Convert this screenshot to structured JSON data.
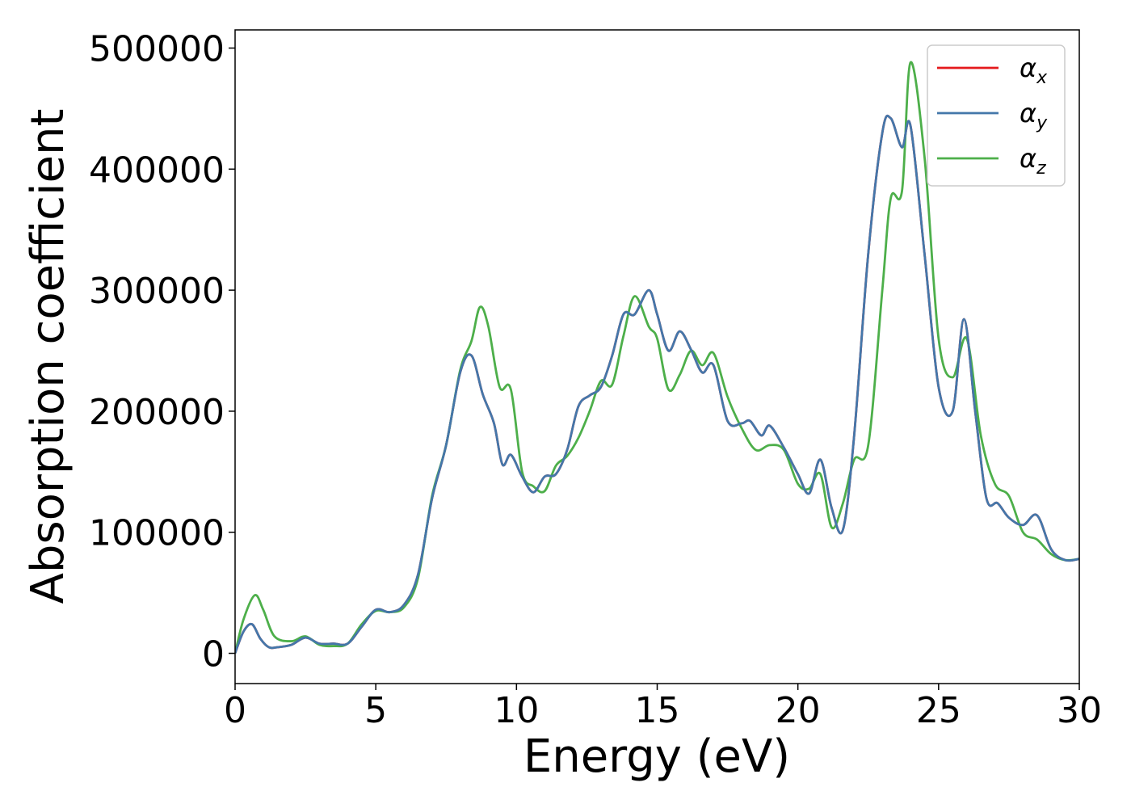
{
  "chart_data": {
    "type": "line",
    "title": "",
    "xlabel": "Energy (eV)",
    "ylabel": "Absorption coefficient",
    "xlim": [
      0,
      30
    ],
    "ylim": [
      -25000,
      515000
    ],
    "xticks": [
      0,
      5,
      10,
      15,
      20,
      25,
      30
    ],
    "yticks": [
      0,
      100000,
      200000,
      300000,
      400000,
      500000
    ],
    "xtick_labels": [
      "0",
      "5",
      "10",
      "15",
      "20",
      "25",
      "30"
    ],
    "ytick_labels": [
      "0",
      "100000",
      "200000",
      "300000",
      "400000",
      "500000"
    ],
    "grid": false,
    "legend_position": "top-right",
    "series": [
      {
        "name": "α",
        "sub": "x",
        "color": "#e41a1c",
        "x": [
          0,
          0.3,
          0.6,
          0.9,
          1.2,
          1.5,
          2.0,
          2.5,
          3.0,
          3.5,
          4.0,
          4.5,
          5.0,
          5.5,
          6.0,
          6.5,
          7.0,
          7.5,
          8.0,
          8.4,
          8.8,
          9.2,
          9.5,
          9.8,
          10.2,
          10.6,
          11.0,
          11.4,
          11.8,
          12.2,
          12.6,
          13.0,
          13.4,
          13.8,
          14.2,
          14.7,
          15.0,
          15.4,
          15.8,
          16.2,
          16.6,
          17.0,
          17.5,
          18.0,
          18.3,
          18.7,
          19.0,
          19.5,
          20.0,
          20.4,
          20.8,
          21.2,
          21.6,
          22.0,
          22.5,
          23.0,
          23.3,
          23.7,
          24.0,
          24.5,
          25.0,
          25.5,
          25.9,
          26.3,
          26.7,
          27.1,
          27.5,
          28.0,
          28.5,
          29.0,
          29.5,
          30.0
        ],
        "values": [
          0,
          18000,
          24000,
          12000,
          5000,
          5000,
          7000,
          13000,
          8000,
          8000,
          8000,
          22000,
          36000,
          34000,
          40000,
          65000,
          128000,
          172000,
          232000,
          246000,
          214000,
          190000,
          156000,
          164000,
          146000,
          133000,
          146000,
          148000,
          168000,
          204000,
          213000,
          220000,
          246000,
          280000,
          280000,
          300000,
          280000,
          250000,
          266000,
          251000,
          232000,
          238000,
          192000,
          190000,
          192000,
          180000,
          188000,
          170000,
          148000,
          132000,
          160000,
          120000,
          102000,
          180000,
          330000,
          430000,
          442000,
          418000,
          436000,
          330000,
          220000,
          200000,
          276000,
          200000,
          128000,
          124000,
          112000,
          106000,
          114000,
          86000,
          77000,
          78000
        ]
      },
      {
        "name": "α",
        "sub": "y",
        "color": "#4477aa",
        "x": [
          0,
          0.3,
          0.6,
          0.9,
          1.2,
          1.5,
          2.0,
          2.5,
          3.0,
          3.5,
          4.0,
          4.5,
          5.0,
          5.5,
          6.0,
          6.5,
          7.0,
          7.5,
          8.0,
          8.4,
          8.8,
          9.2,
          9.5,
          9.8,
          10.2,
          10.6,
          11.0,
          11.4,
          11.8,
          12.2,
          12.6,
          13.0,
          13.4,
          13.8,
          14.2,
          14.7,
          15.0,
          15.4,
          15.8,
          16.2,
          16.6,
          17.0,
          17.5,
          18.0,
          18.3,
          18.7,
          19.0,
          19.5,
          20.0,
          20.4,
          20.8,
          21.2,
          21.6,
          22.0,
          22.5,
          23.0,
          23.3,
          23.7,
          24.0,
          24.5,
          25.0,
          25.5,
          25.9,
          26.3,
          26.7,
          27.1,
          27.5,
          28.0,
          28.5,
          29.0,
          29.5,
          30.0
        ],
        "values": [
          0,
          18000,
          24000,
          12000,
          5000,
          5000,
          7000,
          13000,
          8000,
          8000,
          8000,
          22000,
          36000,
          34000,
          40000,
          65000,
          128000,
          172000,
          232000,
          246000,
          214000,
          190000,
          156000,
          164000,
          146000,
          133000,
          146000,
          148000,
          168000,
          204000,
          213000,
          220000,
          246000,
          280000,
          280000,
          300000,
          280000,
          250000,
          266000,
          251000,
          232000,
          238000,
          192000,
          190000,
          192000,
          180000,
          188000,
          170000,
          148000,
          132000,
          160000,
          120000,
          102000,
          180000,
          330000,
          430000,
          442000,
          418000,
          436000,
          330000,
          220000,
          200000,
          276000,
          200000,
          128000,
          124000,
          112000,
          106000,
          114000,
          86000,
          77000,
          78000
        ]
      },
      {
        "name": "α",
        "sub": "z",
        "color": "#4daf4a",
        "x": [
          0,
          0.3,
          0.7,
          1.0,
          1.4,
          2.0,
          2.5,
          3.0,
          3.5,
          4.0,
          4.5,
          5.0,
          5.5,
          6.0,
          6.5,
          7.0,
          7.5,
          8.0,
          8.4,
          8.7,
          9.0,
          9.4,
          9.8,
          10.2,
          10.6,
          11.0,
          11.4,
          11.8,
          12.2,
          12.6,
          13.0,
          13.4,
          13.8,
          14.2,
          14.7,
          15.0,
          15.4,
          15.8,
          16.2,
          16.6,
          17.0,
          17.5,
          18.0,
          18.5,
          19.0,
          19.5,
          20.0,
          20.4,
          20.8,
          21.2,
          21.6,
          22.0,
          22.5,
          23.0,
          23.3,
          23.7,
          24.0,
          24.5,
          25.0,
          25.5,
          26.0,
          26.5,
          27.0,
          27.5,
          28.0,
          28.5,
          29.0,
          29.5,
          30.0
        ],
        "values": [
          0,
          28000,
          48000,
          36000,
          14000,
          10000,
          14000,
          7000,
          6000,
          8000,
          24000,
          35000,
          34000,
          38000,
          62000,
          130000,
          172000,
          234000,
          258000,
          286000,
          270000,
          220000,
          218000,
          150000,
          138000,
          134000,
          155000,
          163000,
          178000,
          200000,
          225000,
          222000,
          262000,
          295000,
          270000,
          260000,
          218000,
          230000,
          250000,
          238000,
          248000,
          212000,
          186000,
          168000,
          172000,
          168000,
          140000,
          136000,
          148000,
          104000,
          124000,
          160000,
          172000,
          300000,
          376000,
          382000,
          488000,
          410000,
          260000,
          228000,
          260000,
          180000,
          140000,
          130000,
          100000,
          94000,
          82000,
          77000,
          78000
        ]
      }
    ]
  }
}
